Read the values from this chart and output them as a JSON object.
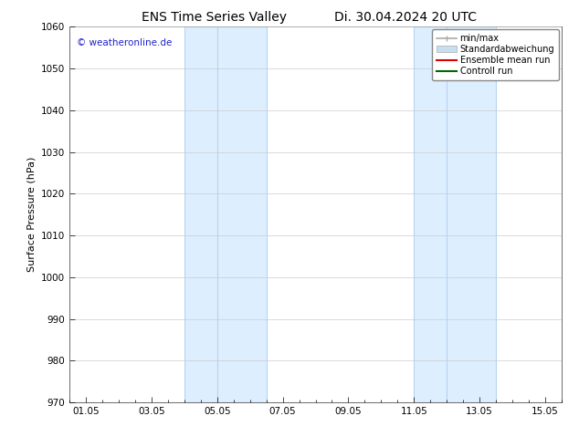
{
  "title_left": "ENS Time Series Valley",
  "title_right": "Di. 30.04.2024 20 UTC",
  "ylabel": "Surface Pressure (hPa)",
  "ylim": [
    970,
    1060
  ],
  "yticks": [
    970,
    980,
    990,
    1000,
    1010,
    1020,
    1030,
    1040,
    1050,
    1060
  ],
  "xtick_labels": [
    "01.05",
    "03.05",
    "05.05",
    "07.05",
    "09.05",
    "11.05",
    "13.05",
    "15.05"
  ],
  "xtick_positions": [
    0,
    2,
    4,
    6,
    8,
    10,
    12,
    14
  ],
  "xlim": [
    -0.5,
    14.5
  ],
  "shaded_regions": [
    {
      "xmin": 3.0,
      "xmax": 4.0
    },
    {
      "xmin": 4.0,
      "xmax": 5.5
    },
    {
      "xmin": 10.0,
      "xmax": 11.0
    },
    {
      "xmin": 11.0,
      "xmax": 12.5
    }
  ],
  "shaded_color": "#ddeeff",
  "shaded_edge_color": "#b8d4f0",
  "watermark": "© weatheronline.de",
  "watermark_color": "#2222cc",
  "legend_items": [
    {
      "label": "min/max",
      "color": "#aaaaaa",
      "lw": 1.2
    },
    {
      "label": "Standardabweichung",
      "color": "#c8dff0",
      "lw": 6
    },
    {
      "label": "Ensemble mean run",
      "color": "#dd0000",
      "lw": 1.5
    },
    {
      "label": "Controll run",
      "color": "#006600",
      "lw": 1.5
    }
  ],
  "bg_color": "#ffffff",
  "grid_color": "#cccccc",
  "title_fontsize": 10,
  "label_fontsize": 8,
  "tick_fontsize": 7.5
}
